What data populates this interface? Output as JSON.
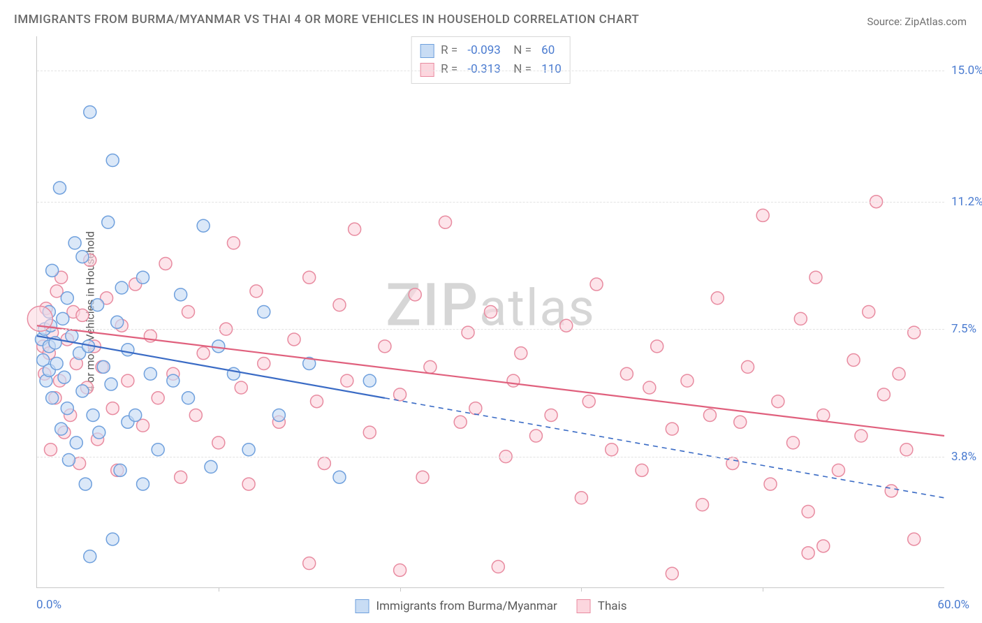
{
  "title": "IMMIGRANTS FROM BURMA/MYANMAR VS THAI 4 OR MORE VEHICLES IN HOUSEHOLD CORRELATION CHART",
  "source_label": "Source:",
  "source_name": "ZipAtlas.com",
  "ylabel": "4 or more Vehicles in Household",
  "watermark_pre": "ZIP",
  "watermark_post": "atlas",
  "chart": {
    "type": "scatter-correlation",
    "xlim": [
      0,
      60
    ],
    "ylim": [
      0,
      16
    ],
    "yticks": [
      {
        "v": 15.0,
        "label": "15.0%"
      },
      {
        "v": 11.2,
        "label": "11.2%"
      },
      {
        "v": 7.5,
        "label": "7.5%"
      },
      {
        "v": 3.8,
        "label": "3.8%"
      }
    ],
    "xlabels": {
      "min": "0.0%",
      "max": "60.0%"
    },
    "xtick_positions": [
      12,
      24,
      36,
      48
    ],
    "background_color": "#ffffff",
    "grid_color": "#e2e2e2",
    "axis_color": "#c8c8c8",
    "marker_radius": 9,
    "marker_stroke_width": 1.5,
    "line_width": 2.2,
    "series": [
      {
        "key": "burma",
        "label": "Immigrants from Burma/Myanmar",
        "fill": "#c8dcf4",
        "stroke": "#6fa0dd",
        "line_color": "#3a6bc5",
        "R": "-0.093",
        "N": "60",
        "trend": {
          "x0": 0,
          "y0": 7.3,
          "x1": 60,
          "y1": 2.6,
          "solid_until_x": 23
        },
        "points": [
          [
            0.3,
            7.2
          ],
          [
            0.4,
            6.6
          ],
          [
            0.5,
            7.5
          ],
          [
            0.6,
            6.0
          ],
          [
            0.8,
            7.0
          ],
          [
            0.8,
            6.3
          ],
          [
            0.8,
            8.0
          ],
          [
            0.9,
            7.6
          ],
          [
            1.0,
            5.5
          ],
          [
            1.0,
            9.2
          ],
          [
            1.2,
            7.1
          ],
          [
            1.3,
            6.5
          ],
          [
            1.5,
            11.6
          ],
          [
            1.6,
            4.6
          ],
          [
            1.7,
            7.8
          ],
          [
            1.8,
            6.1
          ],
          [
            2.0,
            8.4
          ],
          [
            2.0,
            5.2
          ],
          [
            2.1,
            3.7
          ],
          [
            2.3,
            7.3
          ],
          [
            2.5,
            10.0
          ],
          [
            2.6,
            4.2
          ],
          [
            2.8,
            6.8
          ],
          [
            3.0,
            9.6
          ],
          [
            3.0,
            5.7
          ],
          [
            3.2,
            3.0
          ],
          [
            3.4,
            7.0
          ],
          [
            3.5,
            13.8
          ],
          [
            3.5,
            0.9
          ],
          [
            3.7,
            5.0
          ],
          [
            4.0,
            8.2
          ],
          [
            4.1,
            4.5
          ],
          [
            4.4,
            6.4
          ],
          [
            4.7,
            10.6
          ],
          [
            4.9,
            5.9
          ],
          [
            5.0,
            12.4
          ],
          [
            5.0,
            1.4
          ],
          [
            5.3,
            7.7
          ],
          [
            5.5,
            3.4
          ],
          [
            5.6,
            8.7
          ],
          [
            6.0,
            4.8
          ],
          [
            6.0,
            6.9
          ],
          [
            6.5,
            5.0
          ],
          [
            7.0,
            3.0
          ],
          [
            7.0,
            9.0
          ],
          [
            7.5,
            6.2
          ],
          [
            8.0,
            4.0
          ],
          [
            9.0,
            6.0
          ],
          [
            9.5,
            8.5
          ],
          [
            10.0,
            5.5
          ],
          [
            11.0,
            10.5
          ],
          [
            11.5,
            3.5
          ],
          [
            12.0,
            7.0
          ],
          [
            13.0,
            6.2
          ],
          [
            14.0,
            4.0
          ],
          [
            15.0,
            8.0
          ],
          [
            16.0,
            5.0
          ],
          [
            18.0,
            6.5
          ],
          [
            20.0,
            3.2
          ],
          [
            22.0,
            6.0
          ]
        ]
      },
      {
        "key": "thai",
        "label": "Thais",
        "fill": "#fcd6de",
        "stroke": "#e88ba0",
        "line_color": "#e0607d",
        "R": "-0.313",
        "N": "110",
        "trend": {
          "x0": 0,
          "y0": 7.6,
          "x1": 60,
          "y1": 4.4,
          "solid_until_x": 60
        },
        "points": [
          [
            0.4,
            7.0
          ],
          [
            0.5,
            6.2
          ],
          [
            0.6,
            8.1
          ],
          [
            0.8,
            6.8
          ],
          [
            0.9,
            4.0
          ],
          [
            1.0,
            7.4
          ],
          [
            1.2,
            5.5
          ],
          [
            1.3,
            8.6
          ],
          [
            1.5,
            6.0
          ],
          [
            1.6,
            9.0
          ],
          [
            1.8,
            4.5
          ],
          [
            2.0,
            7.2
          ],
          [
            2.2,
            5.0
          ],
          [
            2.4,
            8.0
          ],
          [
            2.6,
            6.5
          ],
          [
            2.8,
            3.6
          ],
          [
            3.0,
            7.9
          ],
          [
            3.3,
            5.8
          ],
          [
            3.5,
            9.5
          ],
          [
            3.8,
            7.0
          ],
          [
            4.0,
            4.3
          ],
          [
            4.3,
            6.4
          ],
          [
            4.6,
            8.4
          ],
          [
            5.0,
            5.2
          ],
          [
            5.3,
            3.4
          ],
          [
            5.6,
            7.6
          ],
          [
            6.0,
            6.0
          ],
          [
            6.5,
            8.8
          ],
          [
            7.0,
            4.7
          ],
          [
            7.5,
            7.3
          ],
          [
            8.0,
            5.5
          ],
          [
            8.5,
            9.4
          ],
          [
            9.0,
            6.2
          ],
          [
            9.5,
            3.2
          ],
          [
            10.0,
            8.0
          ],
          [
            10.5,
            5.0
          ],
          [
            11.0,
            6.8
          ],
          [
            12.0,
            4.2
          ],
          [
            12.5,
            7.5
          ],
          [
            13.0,
            10.0
          ],
          [
            13.5,
            5.8
          ],
          [
            14.0,
            3.0
          ],
          [
            14.5,
            8.6
          ],
          [
            15.0,
            6.5
          ],
          [
            16.0,
            4.8
          ],
          [
            17.0,
            7.2
          ],
          [
            18.0,
            9.0
          ],
          [
            18.5,
            5.4
          ],
          [
            19.0,
            3.6
          ],
          [
            20.0,
            8.2
          ],
          [
            20.5,
            6.0
          ],
          [
            21.0,
            10.4
          ],
          [
            22.0,
            4.5
          ],
          [
            23.0,
            7.0
          ],
          [
            24.0,
            5.6
          ],
          [
            25.0,
            8.5
          ],
          [
            25.5,
            3.2
          ],
          [
            26.0,
            6.4
          ],
          [
            27.0,
            10.6
          ],
          [
            28.0,
            4.8
          ],
          [
            28.5,
            7.4
          ],
          [
            29.0,
            5.2
          ],
          [
            30.0,
            8.0
          ],
          [
            31.0,
            3.8
          ],
          [
            31.5,
            6.0
          ],
          [
            32.0,
            6.8
          ],
          [
            33.0,
            4.4
          ],
          [
            34.0,
            5.0
          ],
          [
            35.0,
            7.6
          ],
          [
            36.0,
            2.6
          ],
          [
            36.5,
            5.4
          ],
          [
            37.0,
            8.8
          ],
          [
            38.0,
            4.0
          ],
          [
            39.0,
            6.2
          ],
          [
            40.0,
            3.4
          ],
          [
            40.5,
            5.8
          ],
          [
            41.0,
            7.0
          ],
          [
            42.0,
            4.6
          ],
          [
            43.0,
            6.0
          ],
          [
            44.0,
            2.4
          ],
          [
            44.5,
            5.0
          ],
          [
            45.0,
            8.4
          ],
          [
            46.0,
            3.6
          ],
          [
            46.5,
            4.8
          ],
          [
            47.0,
            6.4
          ],
          [
            48.0,
            10.8
          ],
          [
            48.5,
            3.0
          ],
          [
            49.0,
            5.4
          ],
          [
            50.0,
            4.2
          ],
          [
            50.5,
            7.8
          ],
          [
            51.0,
            2.2
          ],
          [
            51.5,
            9.0
          ],
          [
            52.0,
            5.0
          ],
          [
            53.0,
            3.4
          ],
          [
            54.0,
            6.6
          ],
          [
            54.5,
            4.4
          ],
          [
            55.0,
            8.0
          ],
          [
            55.5,
            11.2
          ],
          [
            56.0,
            5.6
          ],
          [
            56.5,
            2.8
          ],
          [
            57.0,
            6.2
          ],
          [
            57.5,
            4.0
          ],
          [
            58.0,
            1.4
          ],
          [
            58.0,
            7.4
          ],
          [
            52.0,
            1.2
          ],
          [
            51.0,
            1.0
          ],
          [
            42.0,
            0.4
          ],
          [
            30.5,
            0.6
          ],
          [
            24.0,
            0.5
          ],
          [
            18.0,
            0.7
          ]
        ]
      }
    ]
  }
}
